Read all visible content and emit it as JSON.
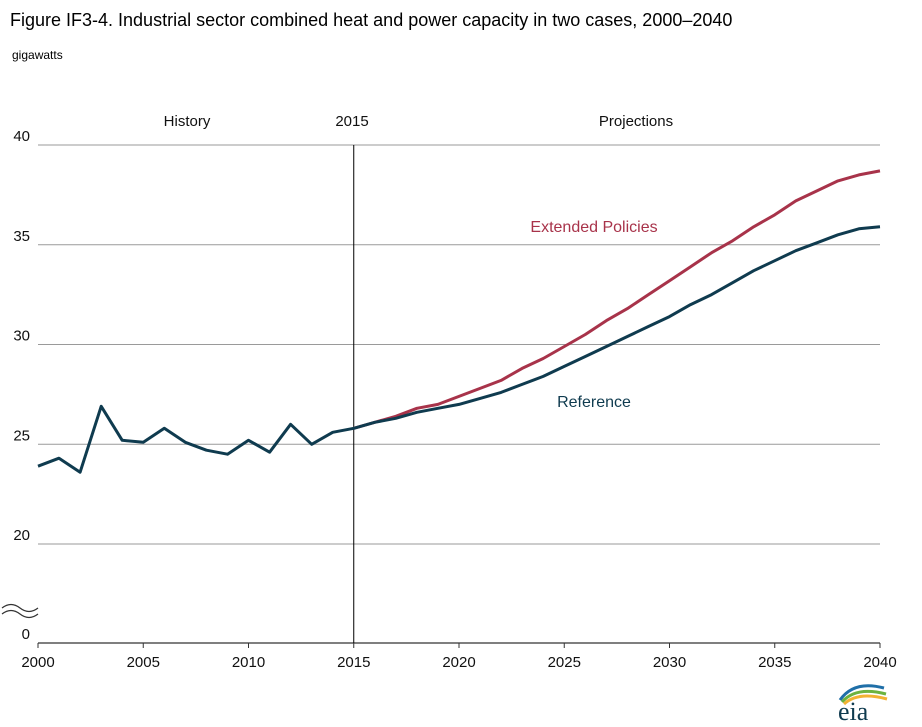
{
  "figure": {
    "title": "Figure IF3-4. Industrial sector combined heat and power capacity in two cases, 2000–2040",
    "unit_label": "gigawatts",
    "annotations": {
      "history": "History",
      "divider_year": "2015",
      "projections": "Projections"
    },
    "logo_text": "eia",
    "colors": {
      "reference": "#0f3b4f",
      "extended": "#a8334a",
      "grid": "#9a9a9a",
      "divider": "#000000"
    }
  },
  "chart_data": {
    "type": "line",
    "title": "Figure IF3-4. Industrial sector combined heat and power capacity in two cases, 2000–2040",
    "xlabel": "",
    "ylabel": "gigawatts",
    "xlim": [
      2000,
      2040
    ],
    "ylim": [
      0,
      40
    ],
    "axis_break": "between 0 and 20",
    "grid": true,
    "x_ticks": [
      "2000",
      "2005",
      "2010",
      "2015",
      "2020",
      "2025",
      "2030",
      "2035",
      "2040"
    ],
    "y_ticks": [
      "0",
      "20",
      "25",
      "30",
      "35",
      "40"
    ],
    "divider_x": 2015,
    "series": [
      {
        "name": "Reference",
        "color": "#0f3b4f",
        "x": [
          2000,
          2001,
          2002,
          2003,
          2004,
          2005,
          2006,
          2007,
          2008,
          2009,
          2010,
          2011,
          2012,
          2013,
          2014,
          2015,
          2016,
          2017,
          2018,
          2019,
          2020,
          2021,
          2022,
          2023,
          2024,
          2025,
          2026,
          2027,
          2028,
          2029,
          2030,
          2031,
          2032,
          2033,
          2034,
          2035,
          2036,
          2037,
          2038,
          2039,
          2040
        ],
        "values": [
          23.9,
          24.3,
          23.6,
          26.9,
          25.2,
          25.1,
          25.8,
          25.1,
          24.7,
          24.5,
          25.2,
          24.6,
          26.0,
          25.0,
          25.6,
          25.8,
          26.1,
          26.3,
          26.6,
          26.8,
          27.0,
          27.3,
          27.6,
          28.0,
          28.4,
          28.9,
          29.4,
          29.9,
          30.4,
          30.9,
          31.4,
          32.0,
          32.5,
          33.1,
          33.7,
          34.2,
          34.7,
          35.1,
          35.5,
          35.8,
          35.9
        ]
      },
      {
        "name": "Extended Policies",
        "color": "#a8334a",
        "x": [
          2015,
          2016,
          2017,
          2018,
          2019,
          2020,
          2021,
          2022,
          2023,
          2024,
          2025,
          2026,
          2027,
          2028,
          2029,
          2030,
          2031,
          2032,
          2033,
          2034,
          2035,
          2036,
          2037,
          2038,
          2039,
          2040
        ],
        "values": [
          25.8,
          26.1,
          26.4,
          26.8,
          27.0,
          27.4,
          27.8,
          28.2,
          28.8,
          29.3,
          29.9,
          30.5,
          31.2,
          31.8,
          32.5,
          33.2,
          33.9,
          34.6,
          35.2,
          35.9,
          36.5,
          37.2,
          37.7,
          38.2,
          38.5,
          38.7
        ]
      }
    ]
  }
}
